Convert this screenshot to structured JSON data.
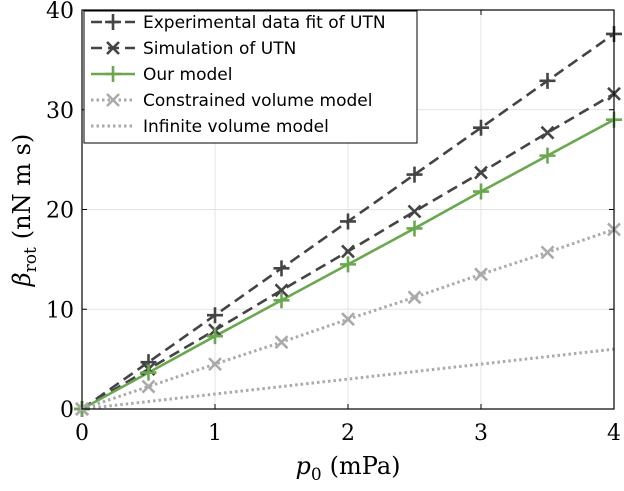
{
  "chart_data": {
    "type": "line",
    "xlabel_symbol": "p",
    "xlabel_sub": "0",
    "xlabel_unit": "(mPa)",
    "ylabel_symbol": "β",
    "ylabel_sub": "rot",
    "ylabel_unit": "(nN m s)",
    "xlim": [
      0,
      4
    ],
    "ylim": [
      0,
      40
    ],
    "xticks": [
      0,
      1,
      2,
      3,
      4
    ],
    "yticks": [
      0,
      10,
      20,
      30,
      40
    ],
    "grid": true,
    "legend_position": "top-left",
    "x": [
      0,
      0.5,
      1,
      1.5,
      2,
      2.5,
      3,
      3.5,
      4
    ],
    "series": [
      {
        "name": "Experimental data fit of UTN",
        "values": [
          0,
          4.7,
          9.4,
          14.1,
          18.8,
          23.5,
          28.2,
          32.9,
          37.6
        ],
        "color": "#444444",
        "dash": "dashed",
        "marker": "plus"
      },
      {
        "name": "Simulation of UTN",
        "values": [
          0,
          4.0,
          7.9,
          11.9,
          15.8,
          19.8,
          23.7,
          27.7,
          31.6
        ],
        "color": "#444444",
        "dash": "dashed",
        "marker": "cross"
      },
      {
        "name": "Our model",
        "values": [
          0,
          3.65,
          7.3,
          10.9,
          14.5,
          18.1,
          21.8,
          25.4,
          29.0
        ],
        "color": "#6aa84f",
        "dash": "solid",
        "marker": "plus"
      },
      {
        "name": "Constrained volume model",
        "values": [
          0,
          2.25,
          4.5,
          6.7,
          9.0,
          11.2,
          13.5,
          15.7,
          18.0
        ],
        "color": "#aaaaaa",
        "dash": "dotted",
        "marker": "cross"
      },
      {
        "name": "Infinite volume model",
        "values": [
          0,
          0.75,
          1.5,
          2.25,
          3.0,
          3.75,
          4.5,
          5.25,
          6.0
        ],
        "color": "#aaaaaa",
        "dash": "dotted",
        "marker": "none"
      }
    ]
  }
}
